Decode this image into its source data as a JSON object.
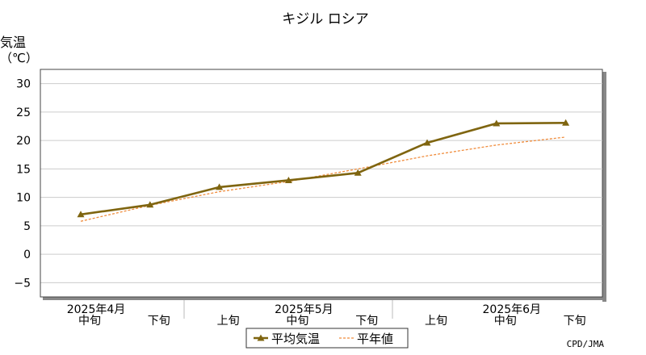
{
  "chart_data": {
    "type": "line",
    "title": "キジル ロシア",
    "ylabel": [
      "気温",
      "（℃）"
    ],
    "ylim": [
      -7.5,
      32.5
    ],
    "yticks": [
      -5,
      0,
      5,
      10,
      15,
      20,
      25,
      30
    ],
    "ytick_labels": [
      "−5",
      "0",
      "5",
      "10",
      "15",
      "20",
      "25",
      "30"
    ],
    "x": [
      "2025年4月 中旬",
      "2025年4月 下旬",
      "2025年5月 上旬",
      "2025年5月 中旬",
      "2025年5月 下旬",
      "2025年6月 上旬",
      "2025年6月 中旬",
      "2025年6月 下旬"
    ],
    "xtick_labels": [
      "中旬",
      "下旬",
      "上旬",
      "中旬",
      "下旬",
      "上旬",
      "中旬",
      "下旬"
    ],
    "month_labels": [
      {
        "label": "2025年4月",
        "index": 0
      },
      {
        "label": "2025年5月",
        "index": 3
      },
      {
        "label": "2025年6月",
        "index": 6
      }
    ],
    "series": [
      {
        "name": "平均気温",
        "values": [
          7.0,
          8.7,
          11.8,
          13.0,
          14.3,
          19.6,
          23.0,
          23.1
        ],
        "color": "#7f6510",
        "style": "solid",
        "marker": "triangle"
      },
      {
        "name": "平年値",
        "values": [
          5.8,
          8.6,
          11.0,
          12.8,
          15.0,
          17.3,
          19.2,
          20.6
        ],
        "color": "#f08c3c",
        "style": "dashed",
        "marker": "none"
      }
    ],
    "grid": true,
    "legend": "bottom",
    "credit": "CPD/JMA"
  }
}
